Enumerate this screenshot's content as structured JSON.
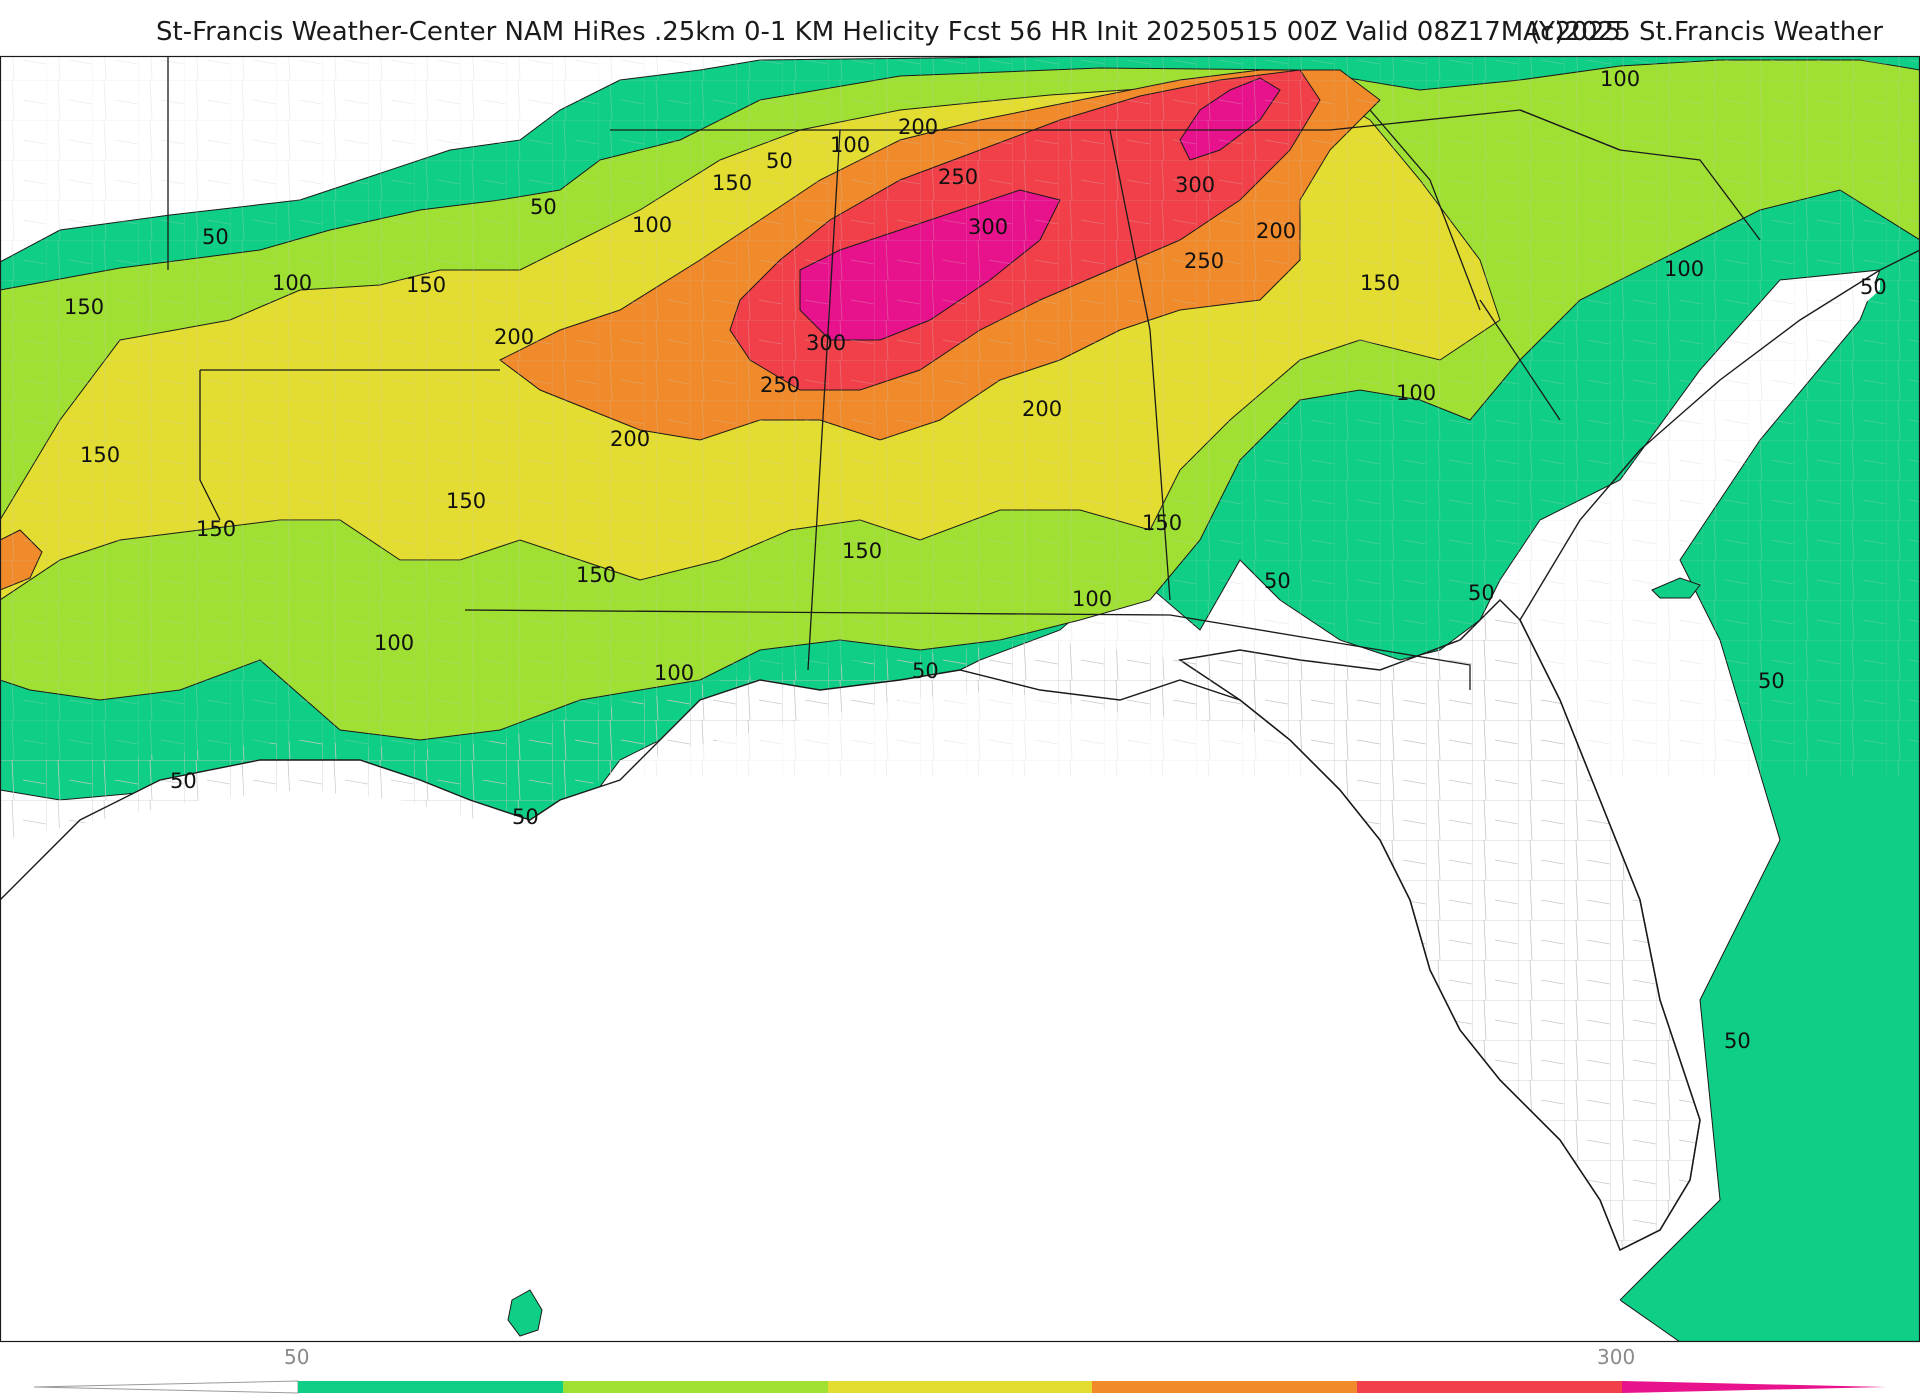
{
  "title": "St-Francis Weather-Center NAM HiRes .25km 0-1 KM Helicity Fcst 56 HR Init 20250515 00Z  Valid 08Z17MAY2025",
  "copyright": "(c)2025 St.Francis Weather",
  "colors": {
    "band_50": "#0fcf86",
    "band_100": "#9fe033",
    "band_150": "#e2dd30",
    "band_200": "#f08a2b",
    "band_250": "#f2404a",
    "band_300": "#e8138c",
    "land": "#ffffff",
    "boundary": "#1a1a1a",
    "county": "#c8c8c8"
  },
  "contour_labels": [
    "50",
    "100",
    "150",
    "200",
    "250",
    "300"
  ],
  "colorbar": {
    "levels": [
      50,
      100,
      150,
      200,
      250,
      300
    ],
    "labels": [
      "50",
      "300"
    ],
    "extend": "both"
  }
}
